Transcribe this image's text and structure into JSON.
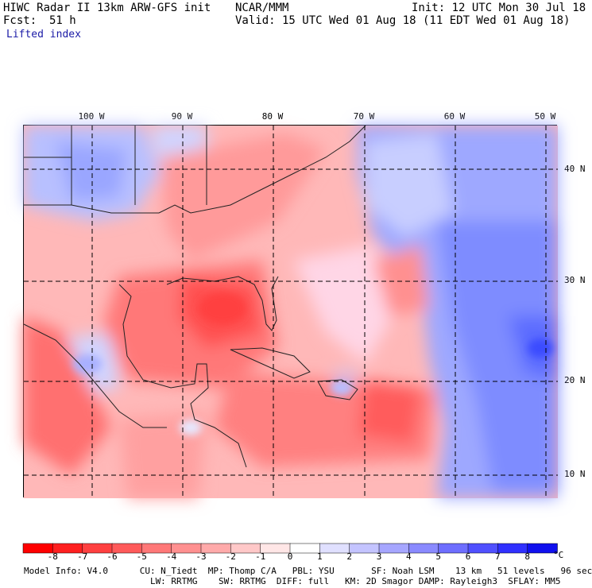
{
  "header": {
    "title": "HIWC Radar II 13km ARW-GFS init",
    "org": "NCAR/MMM",
    "init": "Init: 12 UTC Mon 30 Jul 18",
    "fcst_label": "Fcst:",
    "fcst_value": "51 h",
    "valid": "Valid: 15 UTC Wed 01 Aug 18 (11 EDT Wed 01 Aug 18)",
    "field": "Lifted index"
  },
  "map": {
    "lon_labels": [
      "100 W",
      "90 W",
      "80 W",
      "70 W",
      "60 W",
      "50 W"
    ],
    "lat_labels": [
      "40 N",
      "30 N",
      "20 N",
      "10 N"
    ]
  },
  "colorbar": {
    "labels": [
      "-8",
      "-7",
      "-6",
      "-5",
      "-4",
      "-3",
      "-2",
      "-1",
      "0",
      "1",
      "2",
      "3",
      "4",
      "5",
      "6",
      "7",
      "8"
    ],
    "unit": "°C",
    "colors": [
      "#ff0000",
      "#ff2020",
      "#ff4040",
      "#ff5a5a",
      "#ff7878",
      "#ff9090",
      "#ffaaaa",
      "#ffc8c8",
      "#ffe6e6",
      "#ffffff",
      "#e0e0ff",
      "#c4c4ff",
      "#a6a6ff",
      "#8a8aff",
      "#6e6eff",
      "#5050ff",
      "#3030ff",
      "#1010ee"
    ]
  },
  "footer": {
    "line1": "Model Info: V4.0      CU: N_Tiedt  MP: Thomp C/A   PBL: YSU       SF: Noah LSM    13 km   51 levels   96 sec",
    "line2": "                        LW: RRTMG    SW: RRTMG  DIFF: full   KM: 2D Smagor DAMP: Rayleigh3  SFLAY: MM5"
  }
}
